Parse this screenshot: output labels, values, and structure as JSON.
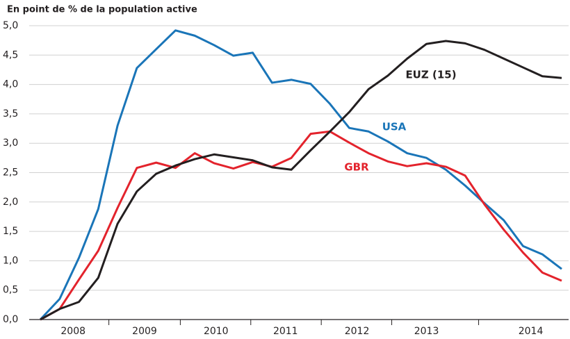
{
  "chart_data": {
    "type": "line",
    "title": "En point de % de la population active",
    "x": [
      0,
      1,
      2,
      3,
      4,
      5,
      6,
      7,
      8,
      9,
      10,
      11,
      12,
      13,
      14,
      15,
      16,
      17,
      18,
      19,
      20,
      21,
      22,
      23,
      24,
      25,
      26,
      27
    ],
    "xlim": [
      0,
      27
    ],
    "xticks": [
      {
        "value": 1.7,
        "label": "2008"
      },
      {
        "value": 5.4,
        "label": "2009"
      },
      {
        "value": 9.1,
        "label": "2010"
      },
      {
        "value": 12.7,
        "label": "2011"
      },
      {
        "value": 16.4,
        "label": "2012"
      },
      {
        "value": 20.0,
        "label": "2013"
      },
      {
        "value": 25.4,
        "label": "2014"
      }
    ],
    "ylim": [
      0,
      5
    ],
    "yticks": [
      {
        "value": 0,
        "label": "0,0"
      },
      {
        "value": 0.5,
        "label": "0,5"
      },
      {
        "value": 1,
        "label": "1,0"
      },
      {
        "value": 1.5,
        "label": "1,5"
      },
      {
        "value": 2,
        "label": "2,0"
      },
      {
        "value": 2.5,
        "label": "2,5"
      },
      {
        "value": 3,
        "label": "3,0"
      },
      {
        "value": 3.5,
        "label": "3,5"
      },
      {
        "value": 4,
        "label": "4,0"
      },
      {
        "value": 4.5,
        "label": "4,5"
      },
      {
        "value": 5,
        "label": "5,0"
      }
    ],
    "grid": true,
    "series": [
      {
        "name": "USA",
        "color": "#1a75b8",
        "values": [
          0,
          0.35,
          1.05,
          1.88,
          3.3,
          4.28,
          4.6,
          4.92,
          4.83,
          4.67,
          4.49,
          4.54,
          4.03,
          4.08,
          4.01,
          3.67,
          3.26,
          3.2,
          3.03,
          2.83,
          2.75,
          2.55,
          2.28,
          1.98,
          1.69,
          1.25,
          1.11,
          0.86
        ]
      },
      {
        "name": "GBR",
        "color": "#e3232c",
        "values": [
          0,
          0.18,
          0.68,
          1.17,
          1.9,
          2.58,
          2.67,
          2.58,
          2.83,
          2.66,
          2.57,
          2.68,
          2.6,
          2.75,
          3.16,
          3.2,
          3.01,
          2.83,
          2.69,
          2.61,
          2.66,
          2.6,
          2.45,
          1.96,
          1.53,
          1.14,
          0.8,
          0.66
        ]
      },
      {
        "name": "EUZ (15)",
        "color": "#231f20",
        "values": [
          0,
          0.18,
          0.3,
          0.71,
          1.63,
          2.18,
          2.48,
          2.62,
          2.73,
          2.81,
          2.76,
          2.71,
          2.59,
          2.55,
          2.88,
          3.2,
          3.53,
          3.92,
          4.15,
          4.44,
          4.69,
          4.74,
          4.7,
          4.59,
          4.44,
          4.29,
          4.14,
          4.11
        ]
      }
    ]
  }
}
